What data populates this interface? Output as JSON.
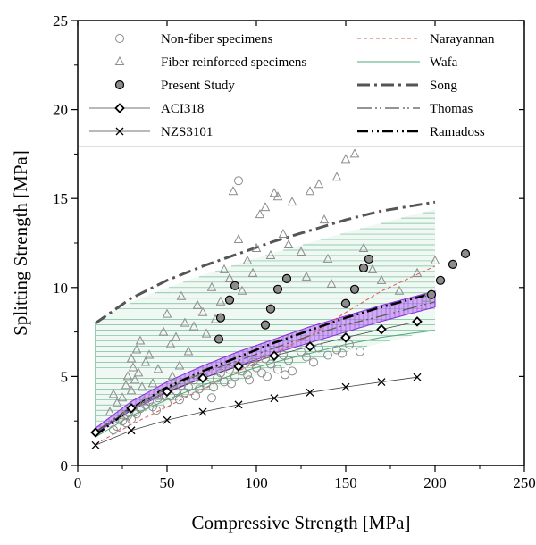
{
  "chart_data": {
    "type": "scatter",
    "xlabel": "Compressive Strength [MPa]",
    "ylabel": "Splitting Strength [MPa]",
    "xlim": [
      0,
      250
    ],
    "ylim": [
      0,
      25
    ],
    "x_ticks": [
      0,
      50,
      100,
      150,
      200,
      250
    ],
    "y_ticks": [
      0,
      5,
      10,
      15,
      20,
      25
    ],
    "grid": false,
    "legend_placement": "top",
    "band": {
      "description": "Wafa range (hatched)",
      "x": [
        10,
        200
      ],
      "lower": [
        1.6,
        7.6
      ],
      "upper": [
        8.0,
        14.4
      ],
      "color": "#4fa878"
    },
    "scatter_series": [
      {
        "name": "Non-fiber specimens",
        "marker": "circle-open",
        "color": "#8c8c8c",
        "points": [
          [
            20,
            2.0
          ],
          [
            22,
            2.2
          ],
          [
            25,
            2.5
          ],
          [
            28,
            2.8
          ],
          [
            30,
            2.6
          ],
          [
            32,
            3.0
          ],
          [
            35,
            3.2
          ],
          [
            38,
            3.4
          ],
          [
            40,
            3.6
          ],
          [
            42,
            3.3
          ],
          [
            45,
            3.8
          ],
          [
            48,
            4.0
          ],
          [
            50,
            3.5
          ],
          [
            52,
            3.9
          ],
          [
            55,
            4.2
          ],
          [
            58,
            4.5
          ],
          [
            60,
            4.1
          ],
          [
            62,
            4.4
          ],
          [
            65,
            4.8
          ],
          [
            68,
            4.3
          ],
          [
            70,
            5.0
          ],
          [
            72,
            4.6
          ],
          [
            75,
            3.8
          ],
          [
            78,
            4.9
          ],
          [
            80,
            5.2
          ],
          [
            82,
            4.7
          ],
          [
            85,
            5.4
          ],
          [
            88,
            5.0
          ],
          [
            90,
            5.6
          ],
          [
            92,
            5.3
          ],
          [
            95,
            5.1
          ],
          [
            98,
            5.8
          ],
          [
            100,
            5.5
          ],
          [
            103,
            5.2
          ],
          [
            105,
            6.0
          ],
          [
            108,
            5.7
          ],
          [
            112,
            5.4
          ],
          [
            115,
            6.2
          ],
          [
            118,
            5.9
          ],
          [
            120,
            5.3
          ],
          [
            125,
            6.4
          ],
          [
            128,
            6.1
          ],
          [
            132,
            5.8
          ],
          [
            135,
            6.6
          ],
          [
            140,
            6.2
          ],
          [
            145,
            6.5
          ],
          [
            148,
            6.3
          ],
          [
            152,
            6.8
          ],
          [
            158,
            6.4
          ],
          [
            90,
            16.0
          ],
          [
            27,
            2.4
          ],
          [
            33,
            2.9
          ],
          [
            44,
            3.1
          ],
          [
            57,
            3.7
          ],
          [
            66,
            3.9
          ],
          [
            76,
            4.4
          ],
          [
            86,
            4.6
          ],
          [
            96,
            4.8
          ],
          [
            106,
            5.0
          ],
          [
            116,
            5.1
          ]
        ]
      },
      {
        "name": "Fiber reinforced specimens",
        "marker": "triangle-open",
        "color": "#8c8c8c",
        "points": [
          [
            18,
            3.0
          ],
          [
            20,
            4.0
          ],
          [
            22,
            3.5
          ],
          [
            25,
            3.8
          ],
          [
            27,
            4.5
          ],
          [
            28,
            5.0
          ],
          [
            30,
            4.2
          ],
          [
            30,
            6.0
          ],
          [
            31,
            5.5
          ],
          [
            32,
            4.8
          ],
          [
            33,
            6.5
          ],
          [
            34,
            5.2
          ],
          [
            35,
            7.0
          ],
          [
            36,
            4.4
          ],
          [
            38,
            5.8
          ],
          [
            40,
            6.2
          ],
          [
            42,
            4.6
          ],
          [
            45,
            5.4
          ],
          [
            48,
            7.5
          ],
          [
            50,
            8.5
          ],
          [
            52,
            6.8
          ],
          [
            55,
            7.2
          ],
          [
            57,
            5.6
          ],
          [
            58,
            9.5
          ],
          [
            60,
            8.0
          ],
          [
            62,
            6.4
          ],
          [
            65,
            7.8
          ],
          [
            67,
            9.0
          ],
          [
            70,
            8.6
          ],
          [
            72,
            7.4
          ],
          [
            75,
            10.0
          ],
          [
            77,
            8.2
          ],
          [
            80,
            9.2
          ],
          [
            82,
            11.0
          ],
          [
            85,
            10.5
          ],
          [
            87,
            15.4
          ],
          [
            90,
            12.7
          ],
          [
            92,
            9.8
          ],
          [
            95,
            11.5
          ],
          [
            98,
            10.8
          ],
          [
            100,
            12.2
          ],
          [
            102,
            14.1
          ],
          [
            105,
            14.5
          ],
          [
            108,
            11.8
          ],
          [
            110,
            15.3
          ],
          [
            112,
            15.1
          ],
          [
            115,
            13.0
          ],
          [
            118,
            12.4
          ],
          [
            120,
            14.8
          ],
          [
            125,
            12.0
          ],
          [
            130,
            15.4
          ],
          [
            135,
            15.8
          ],
          [
            140,
            11.6
          ],
          [
            145,
            16.2
          ],
          [
            150,
            17.2
          ],
          [
            155,
            17.5
          ],
          [
            142,
            10.2
          ],
          [
            128,
            10.6
          ],
          [
            138,
            13.8
          ],
          [
            160,
            12.2
          ],
          [
            165,
            11.0
          ],
          [
            170,
            10.4
          ],
          [
            180,
            9.8
          ],
          [
            190,
            10.8
          ],
          [
            195,
            9.4
          ],
          [
            200,
            11.5
          ],
          [
            26,
            2.8
          ],
          [
            37,
            3.6
          ],
          [
            46,
            3.9
          ],
          [
            53,
            5.0
          ]
        ]
      },
      {
        "name": "Present Study",
        "marker": "circle-filled",
        "color": "#8c8c8c",
        "points": [
          [
            80,
            8.3
          ],
          [
            79,
            7.1
          ],
          [
            85,
            9.3
          ],
          [
            88,
            10.1
          ],
          [
            105,
            7.9
          ],
          [
            108,
            8.8
          ],
          [
            112,
            9.9
          ],
          [
            117,
            10.5
          ],
          [
            150,
            9.1
          ],
          [
            155,
            9.9
          ],
          [
            160,
            11.1
          ],
          [
            163,
            11.6
          ],
          [
            198,
            9.6
          ],
          [
            203,
            10.4
          ],
          [
            210,
            11.3
          ],
          [
            217,
            11.9
          ]
        ]
      },
      {
        "name": "ACI318",
        "marker": "diamond-open",
        "color": "#000000",
        "points": [
          [
            10,
            1.86
          ],
          [
            30,
            3.22
          ],
          [
            50,
            4.15
          ],
          [
            70,
            4.91
          ],
          [
            90,
            5.57
          ],
          [
            110,
            6.16
          ],
          [
            130,
            6.69
          ],
          [
            150,
            7.19
          ],
          [
            170,
            7.65
          ],
          [
            190,
            8.09
          ]
        ]
      },
      {
        "name": "NZS3101",
        "marker": "cross",
        "color": "#000000",
        "points": [
          [
            10,
            1.14
          ],
          [
            30,
            1.97
          ],
          [
            50,
            2.55
          ],
          [
            70,
            3.01
          ],
          [
            90,
            3.42
          ],
          [
            110,
            3.78
          ],
          [
            130,
            4.1
          ],
          [
            150,
            4.41
          ],
          [
            170,
            4.69
          ],
          [
            190,
            4.96
          ]
        ]
      }
    ],
    "line_series": [
      {
        "name": "Narayannan",
        "style": "dashed-thin",
        "color": "#e05555",
        "x": [
          10,
          30,
          50,
          70,
          90,
          110,
          130,
          150,
          170,
          200
        ],
        "y": [
          1.2,
          2.3,
          3.3,
          4.3,
          5.3,
          6.3,
          7.3,
          8.6,
          9.8,
          11.2
        ]
      },
      {
        "name": "Wafa",
        "style": "solid-thin",
        "color": "#4fa878",
        "x": [
          10,
          30,
          50,
          70,
          90,
          110,
          130,
          150,
          170,
          200
        ],
        "y": [
          1.6,
          2.8,
          3.7,
          4.5,
          5.2,
          5.8,
          6.3,
          6.8,
          7.2,
          7.6
        ]
      },
      {
        "name": "Song",
        "style": "dash-dot-thick",
        "color": "#555555",
        "x": [
          10,
          30,
          50,
          70,
          90,
          110,
          130,
          150,
          170,
          200
        ],
        "y": [
          8.0,
          9.4,
          10.4,
          11.2,
          11.9,
          12.6,
          13.2,
          13.8,
          14.3,
          14.8
        ]
      },
      {
        "name": "Thomas",
        "style": "long-dash-dot-dot",
        "color": "#555555",
        "x": [
          10,
          30,
          50,
          70,
          90,
          110,
          130,
          150,
          170,
          200
        ],
        "y": [
          1.9,
          3.3,
          4.3,
          5.2,
          5.9,
          6.6,
          7.3,
          7.9,
          8.4,
          9.2
        ]
      },
      {
        "name": "Ramadoss",
        "style": "dash-dot-dot-thick",
        "color": "#000000",
        "x": [
          10,
          30,
          50,
          70,
          90,
          110,
          130,
          150,
          170,
          200
        ],
        "y": [
          1.7,
          3.2,
          4.4,
          5.3,
          6.1,
          6.9,
          7.6,
          8.3,
          8.9,
          9.7
        ]
      },
      {
        "name": "",
        "style": "purple-band-upper",
        "color": "#9b30ff",
        "x": [
          10,
          30,
          50,
          70,
          90,
          110,
          130,
          150,
          170,
          200
        ],
        "y": [
          2.1,
          3.6,
          4.7,
          5.6,
          6.4,
          7.1,
          7.8,
          8.4,
          9.0,
          9.8
        ]
      },
      {
        "name": "",
        "style": "purple-band-lower",
        "color": "#9b30ff",
        "x": [
          10,
          30,
          50,
          70,
          90,
          110,
          130,
          150,
          170,
          200
        ],
        "y": [
          1.8,
          3.1,
          4.1,
          4.9,
          5.6,
          6.3,
          6.9,
          7.5,
          8.1,
          8.9
        ]
      }
    ],
    "legend": {
      "left": [
        "Non-fiber specimens",
        "Fiber reinforced specimens",
        "Present Study",
        "ACI318",
        "NZS3101"
      ],
      "right": [
        "Narayannan",
        "Wafa",
        "Song",
        "Thomas",
        "Ramadoss"
      ]
    }
  }
}
